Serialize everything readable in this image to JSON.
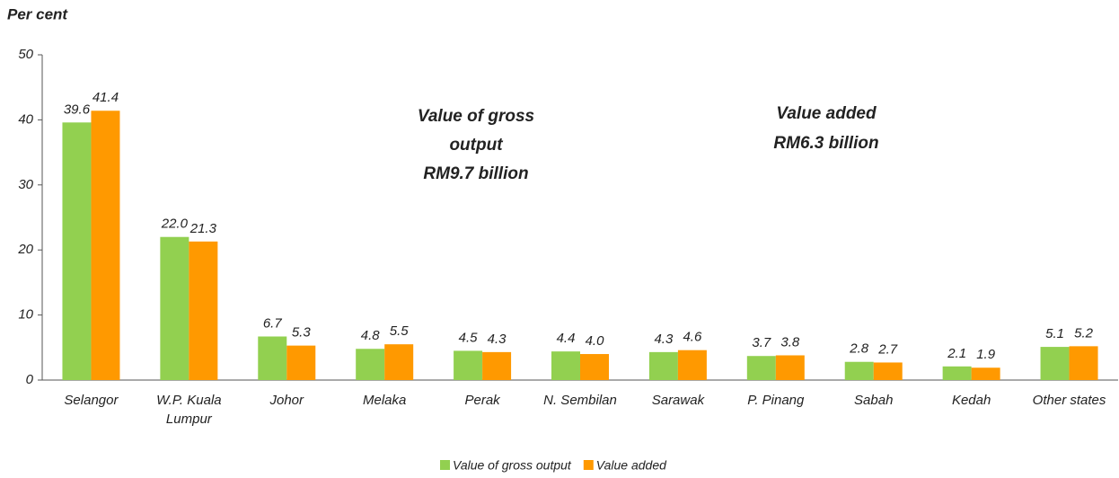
{
  "chart_data": {
    "type": "bar",
    "y_label": "Per cent",
    "categories": [
      "Selangor",
      "W.P. Kuala Lumpur",
      "Johor",
      "Melaka",
      "Perak",
      "N. Sembilan",
      "Sarawak",
      "P. Pinang",
      "Sabah",
      "Kedah",
      "Other states"
    ],
    "series": [
      {
        "name": "Value of gross output",
        "color": "#92d050",
        "values": [
          39.6,
          22.0,
          6.7,
          4.8,
          4.5,
          4.4,
          4.3,
          3.7,
          2.8,
          2.1,
          5.1
        ],
        "value_labels": [
          "39.6",
          "22.0",
          "6.7",
          "4.8",
          "4.5",
          "4.4",
          "4.3",
          "3.7",
          "2.8",
          "2.1",
          "5.1"
        ]
      },
      {
        "name": "Value added",
        "color": "#ff9900",
        "values": [
          41.4,
          21.3,
          5.3,
          5.5,
          4.3,
          4.0,
          4.6,
          3.8,
          2.7,
          1.9,
          5.2
        ],
        "value_labels": [
          "41.4",
          "21.3",
          "5.3",
          "5.5",
          "4.3",
          "4.0",
          "4.6",
          "3.8",
          "2.7",
          "1.9",
          "5.2"
        ]
      }
    ],
    "annotations": [
      [
        "Value of gross",
        "output",
        "RM9.7 billion"
      ],
      [
        "Value added",
        "RM6.3 billion"
      ]
    ],
    "ylim": [
      0,
      50
    ],
    "yticks": [
      0,
      10,
      20,
      30,
      40,
      50
    ],
    "grid": false,
    "legend": "bottom"
  }
}
